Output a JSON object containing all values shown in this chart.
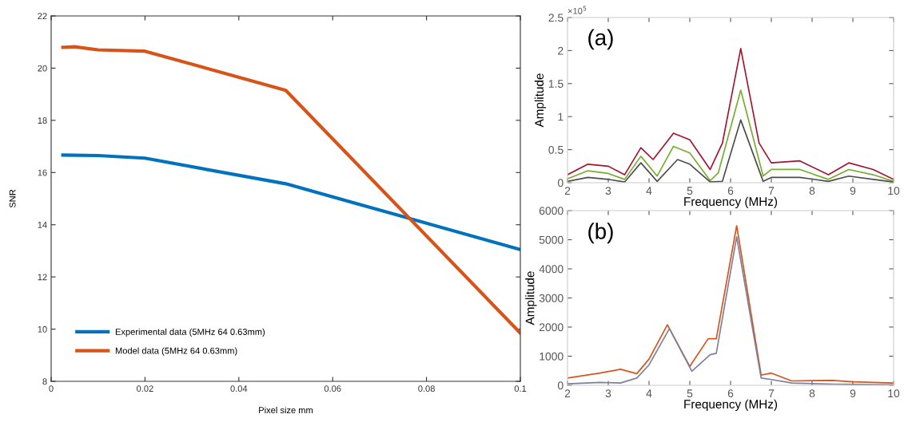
{
  "chart_data": [
    {
      "type": "line",
      "xlabel": "Pixel size mm",
      "ylabel": "SNR",
      "xlim": [
        0,
        0.1
      ],
      "ylim": [
        8,
        22
      ],
      "xticks": [
        0,
        0.02,
        0.04,
        0.06,
        0.08,
        0.1
      ],
      "yticks": [
        8,
        10,
        12,
        14,
        16,
        18,
        20,
        22
      ],
      "legend": "bottom left",
      "grid": false,
      "series": [
        {
          "name": "Experimental data (5MHz 64 0.63mm)",
          "color": "#0072bd",
          "x": [
            0.0025,
            0.01,
            0.02,
            0.05,
            0.1
          ],
          "values": [
            16.67,
            16.65,
            16.55,
            15.57,
            13.05
          ]
        },
        {
          "name": "Model data (5MHz 64 0.63mm)",
          "color": "#d95319",
          "x": [
            0.0025,
            0.005,
            0.01,
            0.02,
            0.05,
            0.1
          ],
          "values": [
            20.8,
            20.82,
            20.7,
            20.65,
            19.15,
            9.85
          ]
        }
      ]
    },
    {
      "type": "line",
      "xlabel": "Frequency (MHz)",
      "ylabel": "Amplitude",
      "xlim": [
        2,
        10
      ],
      "ylim": [
        0,
        2.5
      ],
      "xticks": [
        2,
        3,
        4,
        5,
        6,
        7,
        8,
        9,
        10
      ],
      "yticks": [
        0,
        0.5,
        1,
        1.5,
        2,
        2.5
      ],
      "annotations": [
        "(a)",
        "×10$^{5}$"
      ],
      "grid": false,
      "series": [
        {
          "color": "#a2142f",
          "x": [
            2,
            2.5,
            3,
            3.4,
            3.8,
            4.1,
            4.6,
            5,
            5.5,
            5.8,
            6.25,
            6.7,
            7,
            7.7,
            8.4,
            8.9,
            9.5,
            10
          ],
          "values": [
            0.12,
            0.28,
            0.25,
            0.12,
            0.53,
            0.35,
            0.75,
            0.65,
            0.2,
            0.6,
            2.03,
            0.6,
            0.3,
            0.33,
            0.12,
            0.3,
            0.2,
            0.05
          ]
        },
        {
          "color": "#77ac30",
          "x": [
            2,
            2.5,
            3,
            3.4,
            3.8,
            4.2,
            4.6,
            5,
            5.5,
            5.7,
            6.25,
            6.8,
            7,
            7.7,
            8.4,
            8.9,
            9.5,
            10
          ],
          "values": [
            0.06,
            0.18,
            0.14,
            0.05,
            0.4,
            0.1,
            0.55,
            0.45,
            0.03,
            0.15,
            1.4,
            0.1,
            0.2,
            0.2,
            0.05,
            0.2,
            0.12,
            0.02
          ]
        },
        {
          "color": "#4d4d4d",
          "x": [
            2,
            2.5,
            3,
            3.4,
            3.8,
            4.2,
            4.7,
            5,
            5.5,
            5.8,
            6.25,
            6.8,
            7,
            7.7,
            8.4,
            8.9,
            9.5,
            10
          ],
          "values": [
            0.02,
            0.08,
            0.05,
            0.01,
            0.3,
            0.02,
            0.35,
            0.28,
            0.01,
            0.02,
            0.95,
            0.02,
            0.08,
            0.08,
            0.02,
            0.1,
            0.05,
            0.01
          ]
        }
      ]
    },
    {
      "type": "line",
      "xlabel": "Frequency (MHz)",
      "ylabel": "Amplitude",
      "xlim": [
        2,
        10
      ],
      "ylim": [
        0,
        6000
      ],
      "xticks": [
        2,
        3,
        4,
        5,
        6,
        7,
        8,
        9,
        10
      ],
      "yticks": [
        0,
        1000,
        2000,
        3000,
        4000,
        5000,
        6000
      ],
      "annotations": [
        "(b)"
      ],
      "grid": false,
      "series": [
        {
          "color": "#d95319",
          "x": [
            2,
            2.8,
            3.3,
            3.7,
            4,
            4.45,
            5,
            5.45,
            5.65,
            6.15,
            6.75,
            7,
            7.5,
            8.5,
            9,
            10
          ],
          "values": [
            250,
            420,
            550,
            400,
            900,
            2080,
            650,
            1600,
            1600,
            5480,
            350,
            420,
            150,
            170,
            120,
            80
          ]
        },
        {
          "color": "#7e7e9e",
          "x": [
            2,
            2.8,
            3.3,
            3.7,
            4,
            4.5,
            5.05,
            5.5,
            5.65,
            6.15,
            6.75,
            7,
            7.5,
            8.5,
            9,
            10
          ],
          "values": [
            50,
            100,
            80,
            250,
            700,
            1950,
            480,
            1050,
            1100,
            5100,
            250,
            200,
            80,
            40,
            30,
            20
          ]
        }
      ]
    }
  ]
}
